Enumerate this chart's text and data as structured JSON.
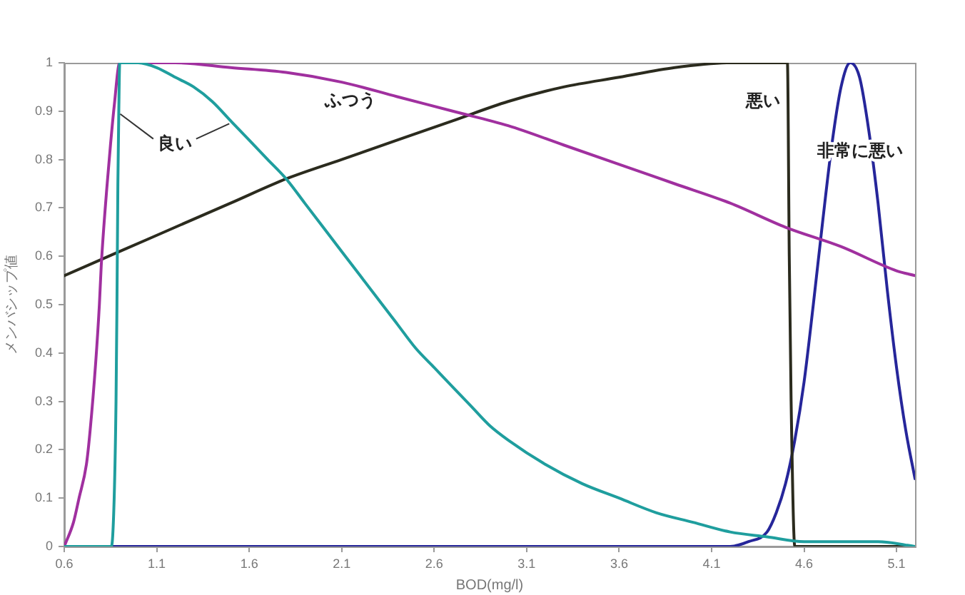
{
  "chart_data": {
    "type": "line",
    "xlabel": "BOD(mg/l)",
    "ylabel": "メンバシップ値",
    "xlim": [
      0.6,
      5.2
    ],
    "ylim": [
      0,
      1
    ],
    "xticks": [
      0.6,
      1.1,
      1.6,
      2.1,
      2.6,
      3.1,
      3.6,
      4.1,
      4.6,
      5.1
    ],
    "yticks": [
      0,
      0.1,
      0.2,
      0.3,
      0.4,
      0.5,
      0.6,
      0.7,
      0.8,
      0.9,
      1
    ],
    "grid": false,
    "legend": false,
    "series": [
      {
        "name": "良い",
        "color": "#1f9e9e",
        "x": [
          0.6,
          0.855,
          0.87,
          0.88,
          0.885,
          0.89,
          0.895,
          0.9,
          1.0,
          1.1,
          1.2,
          1.3,
          1.4,
          1.5,
          1.6,
          1.7,
          1.8,
          1.9,
          2.0,
          2.1,
          2.2,
          2.3,
          2.4,
          2.5,
          2.6,
          2.7,
          2.8,
          2.9,
          3.0,
          3.2,
          3.4,
          3.6,
          3.8,
          4.0,
          4.2,
          4.4,
          4.6,
          4.8,
          5.0,
          5.2
        ],
        "values": [
          0,
          0,
          0.1,
          0.3,
          0.5,
          0.75,
          0.9,
          1,
          1.0,
          0.99,
          0.97,
          0.95,
          0.92,
          0.88,
          0.84,
          0.8,
          0.76,
          0.71,
          0.66,
          0.61,
          0.56,
          0.51,
          0.46,
          0.41,
          0.37,
          0.33,
          0.29,
          0.25,
          0.22,
          0.17,
          0.13,
          0.1,
          0.07,
          0.05,
          0.03,
          0.02,
          0.01,
          0.01,
          0.01,
          0
        ]
      },
      {
        "name": "ふつう",
        "color": "#a0309f",
        "x": [
          0.6,
          0.65,
          0.68,
          0.72,
          0.74,
          0.77,
          0.79,
          0.8,
          0.83,
          0.85,
          0.87,
          0.9,
          1.2,
          1.5,
          1.8,
          2.1,
          2.4,
          2.7,
          3.0,
          3.3,
          3.6,
          3.9,
          4.2,
          4.5,
          4.8,
          5.1,
          5.2
        ],
        "values": [
          0,
          0.05,
          0.1,
          0.17,
          0.24,
          0.38,
          0.5,
          0.58,
          0.74,
          0.83,
          0.91,
          1,
          1.0,
          0.99,
          0.98,
          0.96,
          0.93,
          0.9,
          0.87,
          0.83,
          0.79,
          0.75,
          0.71,
          0.66,
          0.62,
          0.57,
          0.56
        ]
      },
      {
        "name": "悪い",
        "color": "#2b2b1e",
        "x": [
          0.6,
          0.9,
          1.2,
          1.5,
          1.8,
          2.1,
          2.4,
          2.7,
          3.0,
          3.3,
          3.6,
          3.9,
          4.2,
          4.51,
          4.52,
          4.53,
          4.55,
          5.2
        ],
        "values": [
          0.56,
          0.61,
          0.66,
          0.71,
          0.76,
          0.8,
          0.84,
          0.88,
          0.92,
          0.95,
          0.97,
          0.99,
          1.0,
          1,
          0.6,
          0.3,
          0,
          0
        ]
      },
      {
        "name": "非常に悪い",
        "color": "#26269a",
        "x": [
          0.6,
          4.2,
          4.3,
          4.4,
          4.45,
          4.5,
          4.55,
          4.6,
          4.65,
          4.7,
          4.75,
          4.8,
          4.85,
          4.9,
          4.95,
          5.0,
          5.05,
          5.1,
          5.15,
          5.2
        ],
        "values": [
          0,
          0,
          0.01,
          0.03,
          0.07,
          0.13,
          0.22,
          0.34,
          0.5,
          0.67,
          0.83,
          0.95,
          1,
          0.97,
          0.86,
          0.71,
          0.53,
          0.37,
          0.24,
          0.14
        ]
      }
    ]
  }
}
